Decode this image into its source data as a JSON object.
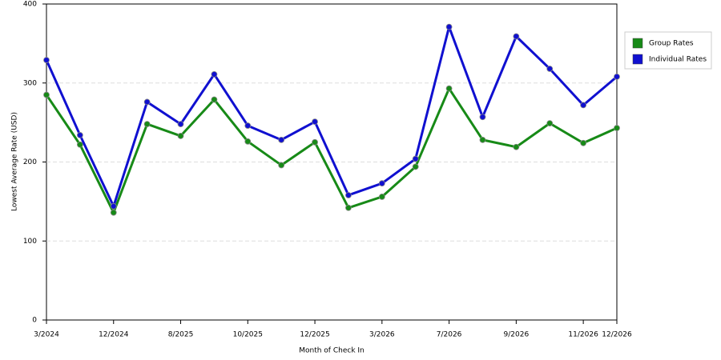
{
  "chart_data": {
    "type": "line",
    "x_label": "Month of Check In",
    "y_label": "Lowest Average Rate (USD)",
    "categories": [
      "3/2024",
      null,
      "12/2024",
      null,
      "8/2025",
      null,
      "10/2025",
      null,
      "12/2025",
      null,
      "3/2026",
      null,
      "7/2026",
      null,
      "9/2026",
      null,
      "11/2026",
      "12/2026"
    ],
    "series": [
      {
        "name": "Group Rates",
        "color": "#178a17",
        "values": [
          285,
          222,
          136,
          248,
          233,
          279,
          226,
          196,
          225,
          142,
          156,
          194,
          293,
          228,
          219,
          249,
          224,
          243
        ]
      },
      {
        "name": "Individual Rates",
        "color": "#1010d0",
        "values": [
          329,
          234,
          144,
          276,
          248,
          311,
          246,
          228,
          251,
          158,
          173,
          204,
          371,
          257,
          359,
          318,
          272,
          308
        ]
      }
    ],
    "ylim": [
      0,
      400
    ],
    "yticks": [
      0,
      100,
      200,
      300,
      400
    ],
    "grid": true,
    "legend": "right"
  }
}
